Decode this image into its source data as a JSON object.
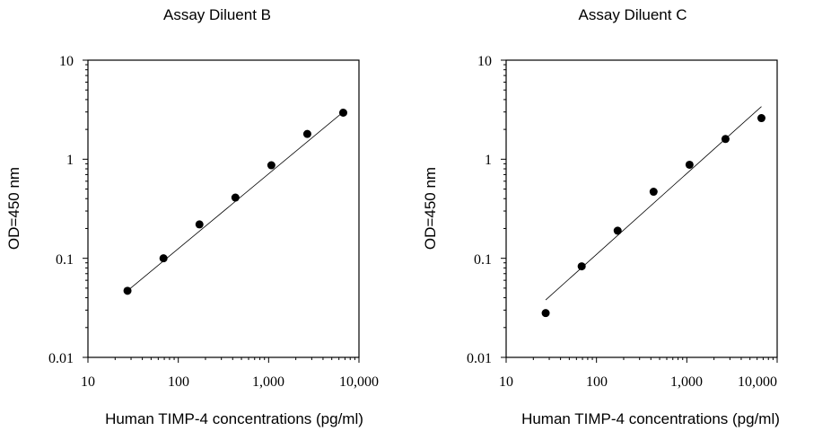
{
  "chart_data": [
    {
      "type": "scatter",
      "title": "Assay Diluent B",
      "xlabel": "Human TIMP-4 concentrations (pg/ml)",
      "ylabel": "OD=450 nm",
      "xscale": "log",
      "yscale": "log",
      "xlim": [
        10,
        10000
      ],
      "ylim": [
        0.01,
        10
      ],
      "xticks": [
        "10",
        "100",
        "1,000",
        "10,000"
      ],
      "yticks": [
        "10",
        "1",
        "0.1",
        "0.01"
      ],
      "grid": false,
      "series": [
        {
          "x": [
            27.4,
            68.6,
            171.5,
            428.7,
            1071.8,
            2679.4,
            6698.5
          ],
          "y": [
            0.047,
            0.1,
            0.22,
            0.41,
            0.87,
            1.8,
            2.95
          ]
        }
      ],
      "fit_line": {
        "x": [
          27.4,
          6698.5
        ],
        "y": [
          0.047,
          3.0
        ]
      }
    },
    {
      "type": "scatter",
      "title": "Assay Diluent C",
      "xlabel": "Human TIMP-4 concentrations (pg/ml)",
      "ylabel": "OD=450 nm",
      "xscale": "log",
      "yscale": "log",
      "xlim": [
        10,
        10000
      ],
      "ylim": [
        0.01,
        10
      ],
      "xticks": [
        "10",
        "100",
        "1,000",
        "10,000"
      ],
      "yticks": [
        "10",
        "1",
        "0.1",
        "0.01"
      ],
      "grid": false,
      "series": [
        {
          "x": [
            27.4,
            68.6,
            171.5,
            428.7,
            1071.8,
            2679.4,
            6698.5
          ],
          "y": [
            0.028,
            0.083,
            0.19,
            0.47,
            0.88,
            1.6,
            2.6
          ]
        }
      ],
      "fit_line": {
        "x": [
          27.4,
          6698.5
        ],
        "y": [
          0.038,
          3.4
        ]
      }
    }
  ]
}
